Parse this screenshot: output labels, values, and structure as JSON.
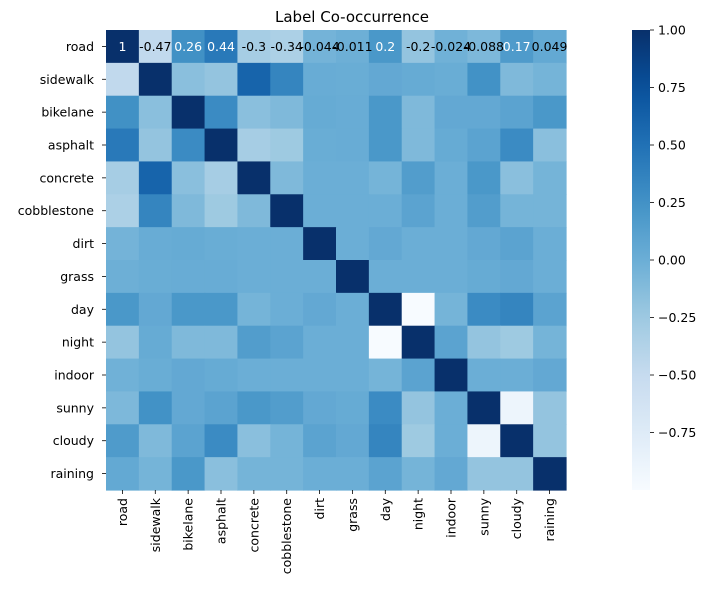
{
  "chart_data": {
    "type": "heatmap",
    "title": "Label Co-occurrence",
    "labels": [
      "road",
      "sidewalk",
      "bikelane",
      "asphalt",
      "concrete",
      "cobblestone",
      "dirt",
      "grass",
      "day",
      "night",
      "indoor",
      "sunny",
      "cloudy",
      "raining"
    ],
    "matrix": [
      [
        1,
        -0.47,
        0.26,
        0.44,
        -0.3,
        -0.34,
        -0.044,
        -0.011,
        0.2,
        -0.2,
        -0.024,
        -0.088,
        0.17,
        0.049
      ],
      [
        -0.47,
        1,
        -0.15,
        -0.2,
        0.6,
        0.35,
        0.02,
        0.01,
        0.05,
        0.03,
        0.01,
        0.25,
        -0.1,
        -0.05
      ],
      [
        0.26,
        -0.15,
        1,
        0.3,
        -0.15,
        -0.1,
        0.03,
        0.02,
        0.2,
        -0.1,
        0.05,
        0.05,
        0.1,
        0.2
      ],
      [
        0.44,
        -0.2,
        0.3,
        1,
        -0.3,
        -0.25,
        0.01,
        0.02,
        0.2,
        -0.1,
        0.03,
        0.1,
        0.3,
        -0.15
      ],
      [
        -0.3,
        0.6,
        -0.15,
        -0.3,
        1,
        -0.1,
        0.0,
        0.0,
        -0.05,
        0.15,
        0.0,
        0.2,
        -0.15,
        -0.05
      ],
      [
        -0.34,
        0.35,
        -0.1,
        -0.25,
        -0.1,
        1,
        0.0,
        0.0,
        0.0,
        0.1,
        0.0,
        0.15,
        -0.05,
        -0.05
      ],
      [
        -0.044,
        0.02,
        0.03,
        0.01,
        0.0,
        0.0,
        1,
        0.0,
        0.05,
        0.0,
        0.0,
        0.05,
        0.1,
        0.0
      ],
      [
        -0.011,
        0.01,
        0.02,
        0.02,
        0.0,
        0.0,
        0.0,
        1,
        0.0,
        0.0,
        0.0,
        0.03,
        0.05,
        0.0
      ],
      [
        0.2,
        0.05,
        0.2,
        0.2,
        -0.05,
        0.0,
        0.05,
        0.0,
        1,
        -1,
        -0.05,
        0.3,
        0.35,
        0.1
      ],
      [
        -0.2,
        0.03,
        -0.1,
        -0.1,
        0.15,
        0.1,
        0.0,
        0.0,
        -1,
        1,
        0.1,
        -0.2,
        -0.25,
        -0.05
      ],
      [
        -0.024,
        0.01,
        0.05,
        0.03,
        0.0,
        0.0,
        0.0,
        0.0,
        -0.05,
        0.1,
        1,
        0.0,
        0.0,
        0.05
      ],
      [
        -0.088,
        0.25,
        0.05,
        0.1,
        0.2,
        0.15,
        0.05,
        0.03,
        0.3,
        -0.2,
        0.0,
        1,
        -0.9,
        -0.2
      ],
      [
        0.17,
        -0.1,
        0.1,
        0.3,
        -0.15,
        -0.05,
        0.1,
        0.05,
        0.35,
        -0.25,
        0.0,
        -0.9,
        1,
        -0.2
      ],
      [
        0.049,
        -0.05,
        0.2,
        -0.15,
        -0.05,
        -0.05,
        0.0,
        0.0,
        0.1,
        -0.05,
        0.05,
        -0.2,
        -0.2,
        1
      ]
    ],
    "annotated_row": 0,
    "annotation_texts": [
      "1",
      "-0.47",
      "0.26",
      "0.44",
      "-0.3",
      "-0.34",
      "-0.044",
      "-0.011",
      "0.2",
      "-0.2",
      "-0.024",
      "-0.088",
      "0.17",
      "0.049"
    ],
    "colormap": "Blues",
    "vmin": -1,
    "vmax": 1,
    "colorbar_ticks": [
      1.0,
      0.75,
      0.5,
      0.25,
      0.0,
      -0.25,
      -0.5,
      -0.75
    ],
    "colorbar_tick_labels": [
      "1.00",
      "0.75",
      "0.50",
      "0.25",
      "0.00",
      "−0.25",
      "−0.50",
      "−0.75"
    ]
  }
}
